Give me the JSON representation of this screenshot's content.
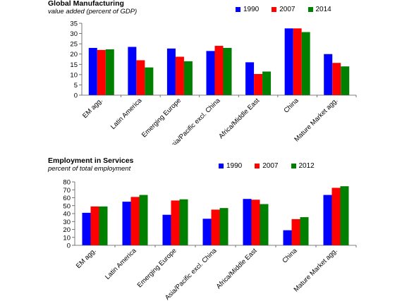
{
  "chart_data": [
    {
      "type": "bar",
      "title": "Global Manufacturing",
      "subtitle": "value added (percent of GDP)",
      "categories": [
        "EM agg.",
        "Latin America",
        "Emerging Europe",
        "Asia/Pacific excl. China",
        "Africa/Middle East",
        "China",
        "Mature Market agg."
      ],
      "series": [
        {
          "name": "1990",
          "color": "#0000ff",
          "values": [
            23,
            23.5,
            22.7,
            21.5,
            16,
            32.5,
            20
          ]
        },
        {
          "name": "2007",
          "color": "#ff0000",
          "values": [
            22,
            17,
            18.7,
            24,
            10.3,
            32.5,
            15.7
          ]
        },
        {
          "name": "2014",
          "color": "#008000",
          "values": [
            22.3,
            13.5,
            16.5,
            23,
            11.5,
            30.7,
            14
          ]
        }
      ],
      "ylim": [
        0,
        35
      ],
      "yticks": [
        0,
        5,
        10,
        15,
        20,
        25,
        30,
        35
      ],
      "grid": false,
      "legend": "top-right"
    },
    {
      "type": "bar",
      "title": "Employment in Services",
      "subtitle": "percent of total employment",
      "categories": [
        "EM agg.",
        "Latin America",
        "Emerging Europe",
        "Asia/Pacific excl. China",
        "Africa/Middle East",
        "China",
        "Mature Market agg."
      ],
      "series": [
        {
          "name": "1990",
          "color": "#0000ff",
          "values": [
            41,
            55,
            38.5,
            33.5,
            58.5,
            19,
            63.5
          ]
        },
        {
          "name": "2007",
          "color": "#ff0000",
          "values": [
            49,
            61,
            56.5,
            45,
            57.5,
            33,
            72.5
          ]
        },
        {
          "name": "2012",
          "color": "#008000",
          "values": [
            49,
            63.5,
            58,
            47,
            52,
            35.5,
            74.5
          ]
        }
      ],
      "ylim": [
        0,
        80
      ],
      "yticks": [
        0,
        10,
        20,
        30,
        40,
        50,
        60,
        70,
        80
      ],
      "grid": false,
      "legend": "top-right"
    }
  ]
}
